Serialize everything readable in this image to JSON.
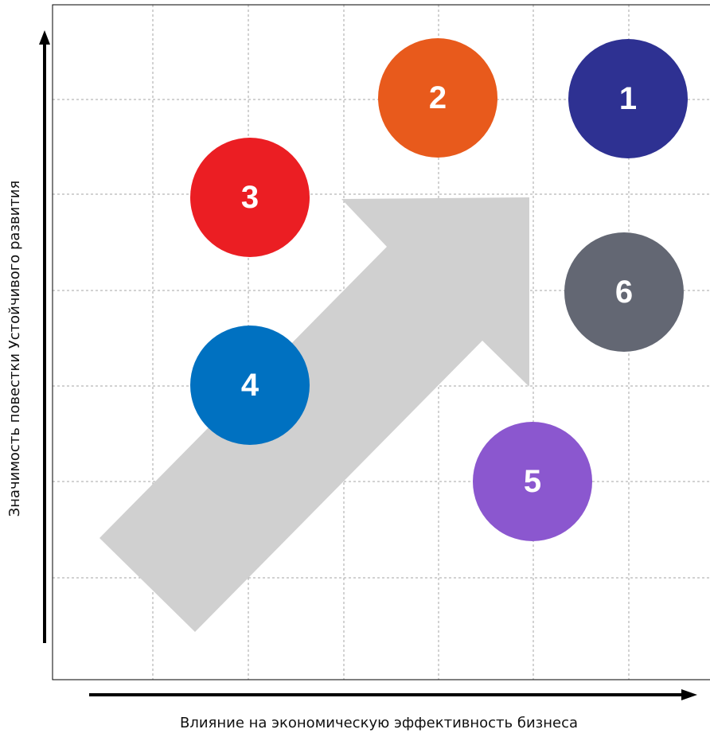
{
  "diagram": {
    "x_axis_label": "Влияние на экономическую эффективность бизнеса",
    "y_axis_label": "Значимость повестки Устойчивого развития",
    "bubbles": [
      {
        "id": "1",
        "label": "1",
        "color": "#2E3192"
      },
      {
        "id": "2",
        "label": "2",
        "color": "#E85A1C"
      },
      {
        "id": "3",
        "label": "3",
        "color": "#EB1E23"
      },
      {
        "id": "4",
        "label": "4",
        "color": "#0071C1"
      },
      {
        "id": "5",
        "label": "5",
        "color": "#8B57CF"
      },
      {
        "id": "6",
        "label": "6",
        "color": "#636773"
      }
    ],
    "colors": {
      "grid": "#A6A6A6",
      "frame": "#000000",
      "arrow_fill": "#D0D0D0",
      "axis_arrow": "#000000"
    }
  }
}
